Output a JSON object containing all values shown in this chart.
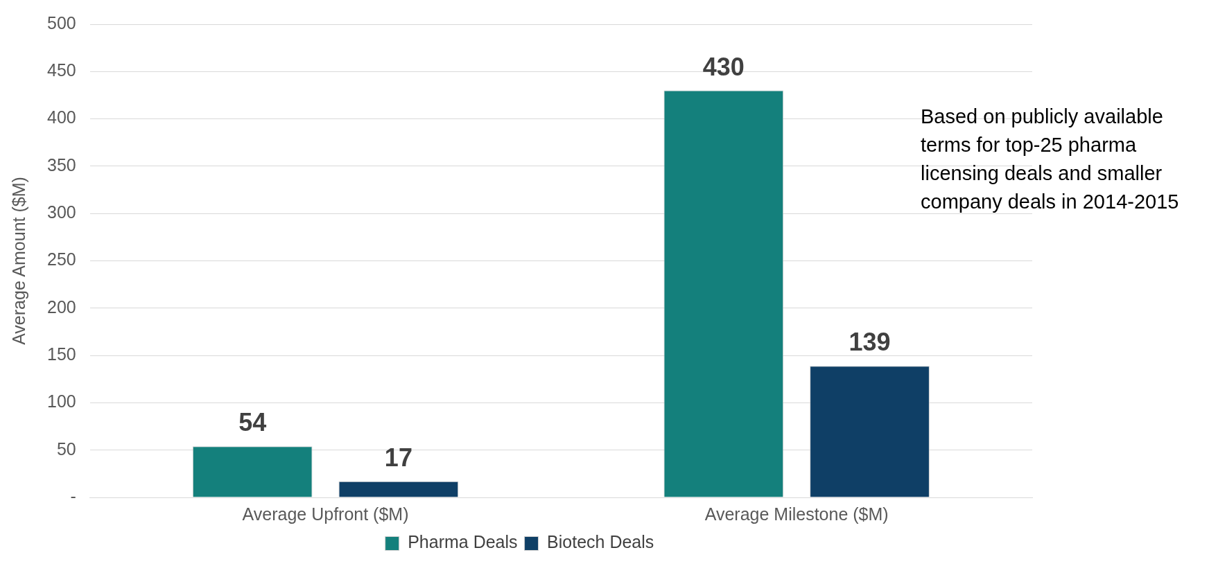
{
  "chart_data": {
    "type": "bar",
    "ylabel": "Average Amount ($M)",
    "categories": [
      "Average Upfront ($M)",
      "Average Milestone ($M)"
    ],
    "series": [
      {
        "name": "Pharma Deals",
        "color": "#14807c",
        "values": [
          54,
          430
        ]
      },
      {
        "name": "Biotech Deals",
        "color": "#0f3f66",
        "values": [
          17,
          139
        ]
      }
    ],
    "ylim": [
      0,
      500
    ],
    "yticks": [
      {
        "value": 0,
        "label": "-"
      },
      50,
      100,
      150,
      200,
      250,
      300,
      350,
      400,
      450,
      500
    ],
    "grid": "y",
    "legend": "bottom",
    "data_labels": true,
    "annotations": [
      "Based on publicly available terms for top-25 pharma licensing deals and smaller company deals in 2014-2015"
    ]
  }
}
